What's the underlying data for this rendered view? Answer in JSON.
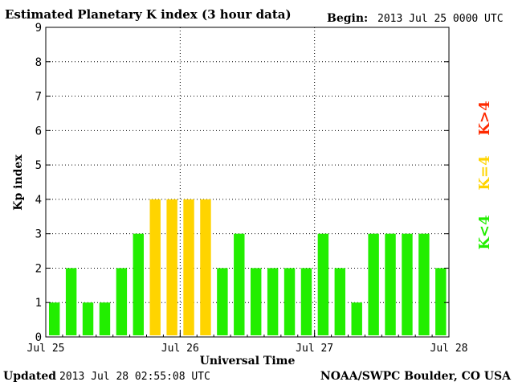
{
  "header": {
    "title": "Estimated Planetary K index (3 hour data)",
    "begin_label": "Begin:",
    "begin_value": "2013 Jul 25 0000 UTC"
  },
  "footer": {
    "updated_label": "Updated",
    "updated_value": "2013 Jul 28 02:55:08 UTC",
    "credit": "NOAA/SWPC Boulder, CO USA"
  },
  "legend": {
    "items": [
      {
        "label": "K>4",
        "color": "#ff2a00"
      },
      {
        "label": "K=4",
        "color": "#ffd400"
      },
      {
        "label": "K<4",
        "color": "#22ee00"
      }
    ]
  },
  "chart_data": {
    "type": "bar",
    "title": "Estimated Planetary K index (3 hour data)",
    "xlabel": "Universal Time",
    "ylabel": "Kp index",
    "ylim": [
      0,
      9
    ],
    "yticks": [
      "0",
      "1",
      "2",
      "3",
      "4",
      "5",
      "6",
      "7",
      "8",
      "9"
    ],
    "xticks": [
      "Jul 25",
      "Jul 26",
      "Jul 27",
      "Jul 28"
    ],
    "grid": true,
    "bar_interval_hours": 3,
    "values": [
      1,
      2,
      1,
      1,
      2,
      3,
      4,
      4,
      4,
      4,
      2,
      3,
      2,
      2,
      2,
      2,
      3,
      2,
      1,
      3,
      3,
      3,
      3,
      2
    ],
    "colors": {
      "below_4": "#22ee00",
      "equal_4": "#ffd400",
      "above_4": "#ff2a00"
    }
  }
}
